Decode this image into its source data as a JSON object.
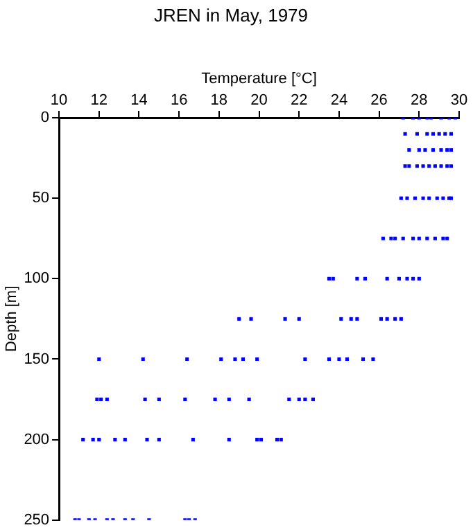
{
  "chart_data": {
    "type": "scatter",
    "title": "JREN in May, 1979",
    "xlabel": "Temperature [°C]",
    "ylabel": "Depth [m]",
    "xlim": [
      10,
      30
    ],
    "xticks": [
      10,
      12,
      14,
      16,
      18,
      20,
      22,
      24,
      26,
      28,
      30
    ],
    "ylim": [
      250,
      0
    ],
    "yticks": [
      0,
      50,
      100,
      150,
      200,
      250
    ],
    "grid": false,
    "marker": "square",
    "series": [
      {
        "color": "#0000ff",
        "x": [
          27.2,
          27.7,
          28.0,
          28.4,
          28.6,
          29.1,
          29.5,
          29.8,
          27.3,
          27.9,
          28.4,
          28.7,
          29.0,
          29.3,
          29.6,
          27.5,
          28.0,
          28.3,
          28.7,
          29.1,
          29.4,
          29.6,
          27.3,
          27.5,
          27.9,
          28.2,
          28.5,
          28.8,
          29.1,
          29.4,
          29.6,
          27.1,
          27.4,
          27.8,
          28.2,
          28.5,
          28.9,
          29.2,
          29.5,
          29.6,
          26.2,
          26.6,
          26.8,
          27.2,
          27.7,
          28.0,
          28.4,
          28.8,
          29.2,
          29.4,
          23.5,
          23.7,
          24.9,
          25.3,
          26.4,
          27.0,
          27.4,
          27.7,
          28.0,
          19.0,
          19.6,
          21.3,
          22.0,
          24.1,
          24.6,
          24.9,
          26.1,
          26.4,
          26.8,
          27.1,
          12.0,
          14.2,
          16.4,
          18.1,
          18.8,
          19.2,
          19.9,
          22.3,
          23.5,
          24.0,
          24.4,
          25.2,
          25.7,
          11.9,
          12.1,
          12.4,
          14.3,
          15.0,
          16.3,
          17.8,
          18.5,
          19.5,
          21.5,
          22.0,
          22.3,
          22.7,
          11.2,
          11.7,
          12.0,
          12.8,
          13.3,
          14.4,
          15.0,
          16.7,
          18.5,
          19.9,
          20.1,
          20.9,
          21.1,
          10.8,
          11.0,
          11.5,
          11.8,
          12.4,
          12.7,
          13.3,
          13.7,
          14.5,
          16.3,
          16.5,
          16.8
        ],
        "values": [
          0,
          0,
          0,
          0,
          0,
          0,
          0,
          0,
          10,
          10,
          10,
          10,
          10,
          10,
          10,
          20,
          20,
          20,
          20,
          20,
          20,
          20,
          30,
          30,
          30,
          30,
          30,
          30,
          30,
          30,
          30,
          50,
          50,
          50,
          50,
          50,
          50,
          50,
          50,
          50,
          75,
          75,
          75,
          75,
          75,
          75,
          75,
          75,
          75,
          75,
          100,
          100,
          100,
          100,
          100,
          100,
          100,
          100,
          100,
          125,
          125,
          125,
          125,
          125,
          125,
          125,
          125,
          125,
          125,
          125,
          150,
          150,
          150,
          150,
          150,
          150,
          150,
          150,
          150,
          150,
          150,
          150,
          150,
          175,
          175,
          175,
          175,
          175,
          175,
          175,
          175,
          175,
          175,
          175,
          175,
          175,
          200,
          200,
          200,
          200,
          200,
          200,
          200,
          200,
          200,
          200,
          200,
          200,
          200,
          250,
          250,
          250,
          250,
          250,
          250,
          250,
          250,
          250,
          250,
          250,
          250
        ]
      }
    ]
  }
}
